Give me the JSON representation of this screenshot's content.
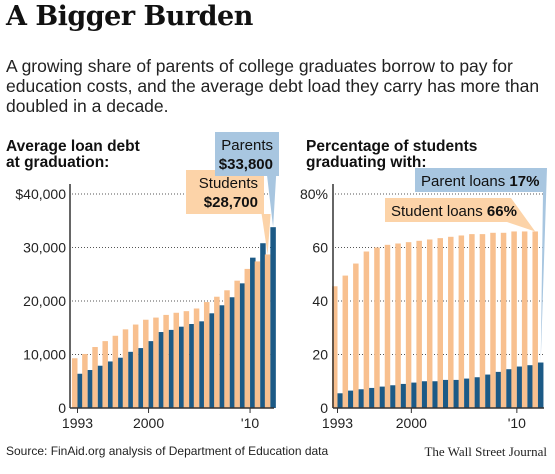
{
  "header": {
    "title": "A Bigger Burden",
    "subtitle": "A growing share of parents of college graduates borrow to pay for education costs, and the average debt load they carry has more than doubled in a decade."
  },
  "footer": {
    "source": "Source: FinAid.org analysis of Department of Education data",
    "credit": "The Wall Street Journal"
  },
  "colors": {
    "students": "#f8c08f",
    "parents": "#1c5a86",
    "callout_students": "#fcd3a8",
    "callout_parents": "#a8c6e0",
    "axis": "#333333",
    "grid": "#555555"
  },
  "chart_data": [
    {
      "type": "bar",
      "title": "Average loan debt at graduation:",
      "title_lines": [
        "Average loan debt",
        "at graduation:"
      ],
      "x_tick_labels": [
        "1993",
        "2000",
        "'10"
      ],
      "y_tick_labels": [
        "0",
        "10,000",
        "20,000",
        "30,000",
        "$40,000"
      ],
      "y_ticks": [
        0,
        10000,
        20000,
        30000,
        40000
      ],
      "ylim": [
        0,
        40000
      ],
      "categories": [
        1993,
        1994,
        1995,
        1996,
        1997,
        1998,
        1999,
        2000,
        2001,
        2002,
        2003,
        2004,
        2005,
        2006,
        2007,
        2008,
        2009,
        2010,
        2011,
        2012
      ],
      "series": [
        {
          "name": "Students",
          "color": "#f8c08f",
          "values": [
            9300,
            10100,
            11400,
            12500,
            13500,
            14700,
            15600,
            16500,
            16900,
            17400,
            17800,
            18100,
            18600,
            19800,
            20800,
            22000,
            23800,
            26000,
            27400,
            28700
          ]
        },
        {
          "name": "Parents",
          "color": "#1c5a86",
          "values": [
            6400,
            7100,
            7900,
            8700,
            9400,
            10500,
            11200,
            12500,
            14200,
            14600,
            15200,
            15700,
            16200,
            17700,
            19200,
            20700,
            23300,
            28100,
            30800,
            33800
          ]
        }
      ],
      "callouts": [
        {
          "series": "Students",
          "label": "Students",
          "value": "$28,700"
        },
        {
          "series": "Parents",
          "label": "Parents",
          "value": "$33,800"
        }
      ]
    },
    {
      "type": "bar",
      "title": "Percentage of students graduating with:",
      "title_lines": [
        "Percentage of students",
        "graduating with:"
      ],
      "x_tick_labels": [
        "1993",
        "2000",
        "'10"
      ],
      "y_tick_labels": [
        "0",
        "20",
        "40",
        "60",
        "80%"
      ],
      "y_ticks": [
        0,
        20,
        40,
        60,
        80
      ],
      "ylim": [
        0,
        80
      ],
      "categories": [
        1993,
        1994,
        1995,
        1996,
        1997,
        1998,
        1999,
        2000,
        2001,
        2002,
        2003,
        2004,
        2005,
        2006,
        2007,
        2008,
        2009,
        2010,
        2011,
        2012
      ],
      "series": [
        {
          "name": "Student loans",
          "color": "#f8c08f",
          "values": [
            45.5,
            49.5,
            54,
            58.5,
            60,
            61,
            61.5,
            62,
            62.5,
            63,
            63.5,
            64,
            64.5,
            65,
            65,
            65.5,
            65.5,
            66,
            66,
            66
          ]
        },
        {
          "name": "Parent loans",
          "color": "#1c5a86",
          "values": [
            5.5,
            6.5,
            7,
            7.5,
            8,
            8.5,
            9,
            9.5,
            10,
            10,
            10.5,
            10.5,
            11,
            11.5,
            12.5,
            13.5,
            14.5,
            15.5,
            16,
            17
          ]
        }
      ],
      "callouts": [
        {
          "series": "Parent loans",
          "label": "Parent loans ",
          "value": "17%"
        },
        {
          "series": "Student loans",
          "label": "Student loans ",
          "value": "66%"
        }
      ]
    }
  ]
}
